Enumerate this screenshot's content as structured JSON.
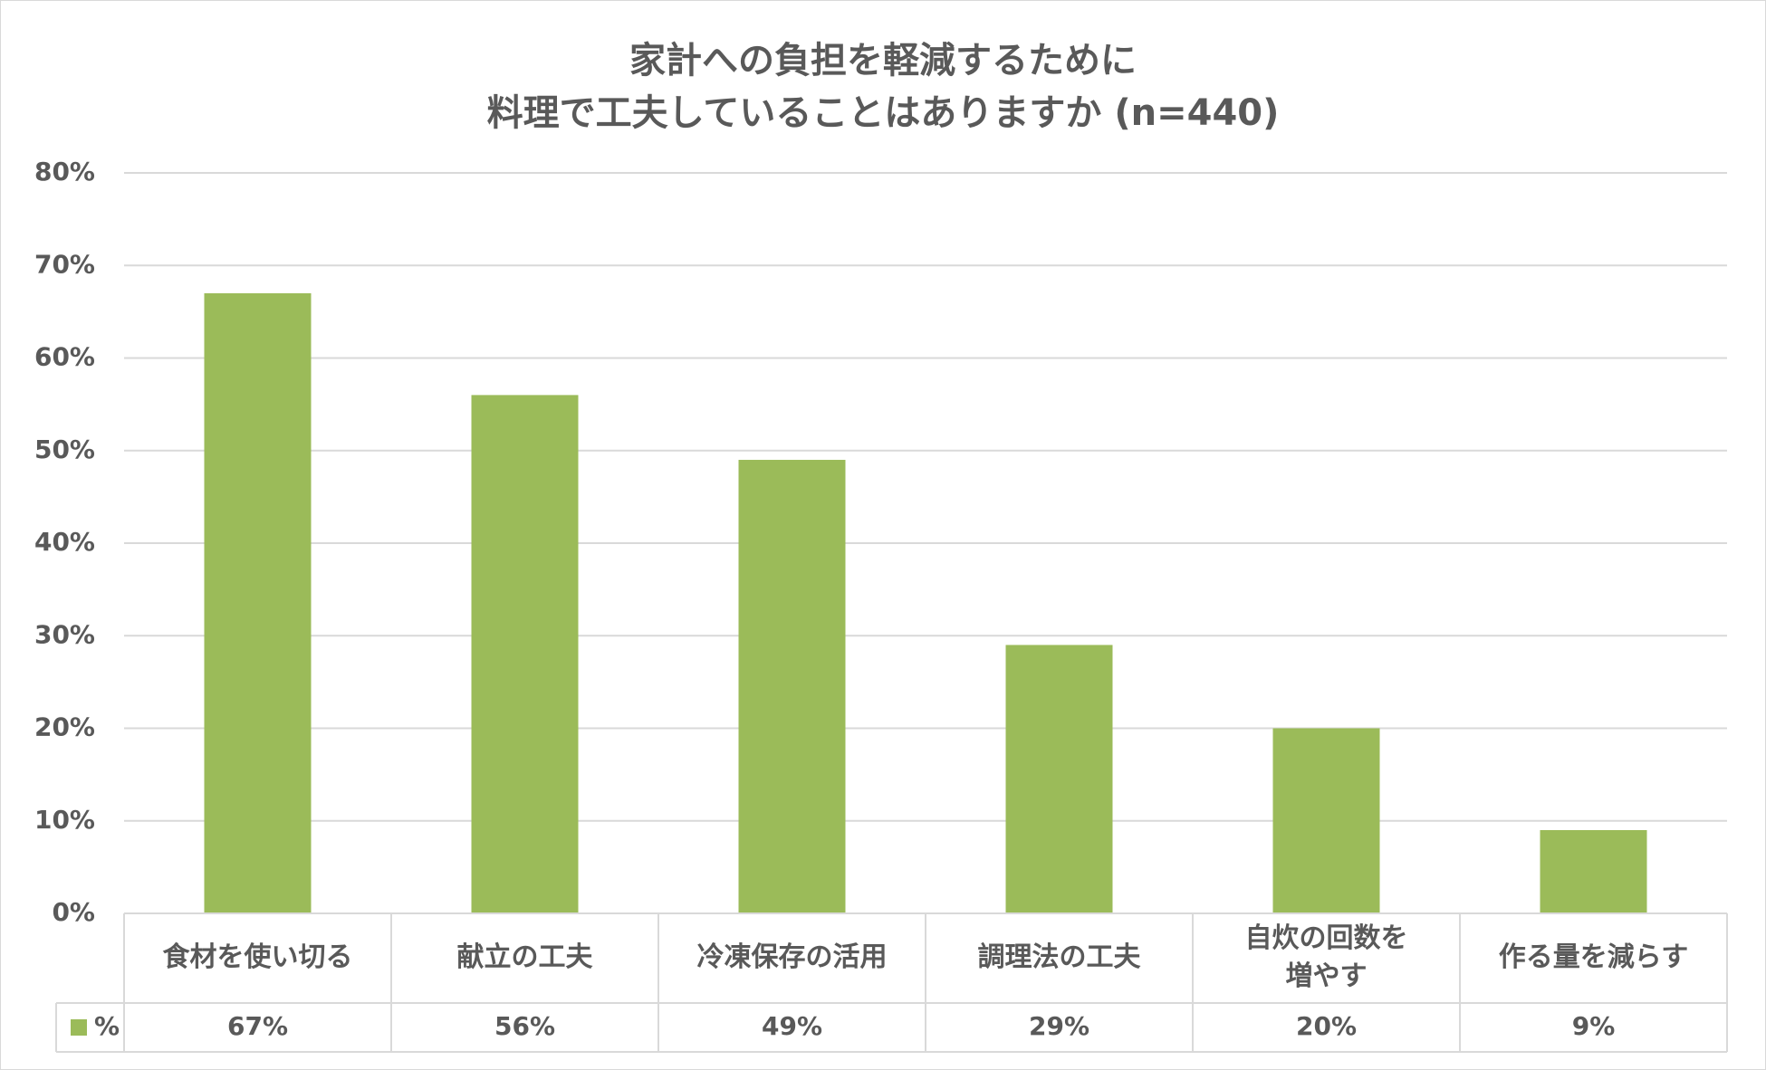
{
  "chart_data": {
    "type": "bar",
    "title": [
      "家計への負担を軽減するために",
      "料理で工夫していることはありますか (n=440)"
    ],
    "categories": [
      [
        "食材を使い切る"
      ],
      [
        "献立の工夫"
      ],
      [
        "冷凍保存の活用"
      ],
      [
        "調理法の工夫"
      ],
      [
        "自炊の回数を",
        "増やす"
      ],
      [
        "作る量を減らす"
      ]
    ],
    "series": [
      {
        "name": "%",
        "values": [
          67,
          56,
          49,
          29,
          20,
          9
        ],
        "color": "#9bbb59"
      }
    ],
    "data_table_values": [
      "67%",
      "56%",
      "49%",
      "29%",
      "20%",
      "9%"
    ],
    "yticks": [
      "0%",
      "10%",
      "20%",
      "30%",
      "40%",
      "50%",
      "60%",
      "70%",
      "80%"
    ],
    "ylim": [
      0,
      80
    ],
    "xlabel": "",
    "ylabel": "",
    "grid": true,
    "legend": "data-table",
    "colors": {
      "gridline": "#d9d9d9",
      "text": "#595959"
    }
  }
}
